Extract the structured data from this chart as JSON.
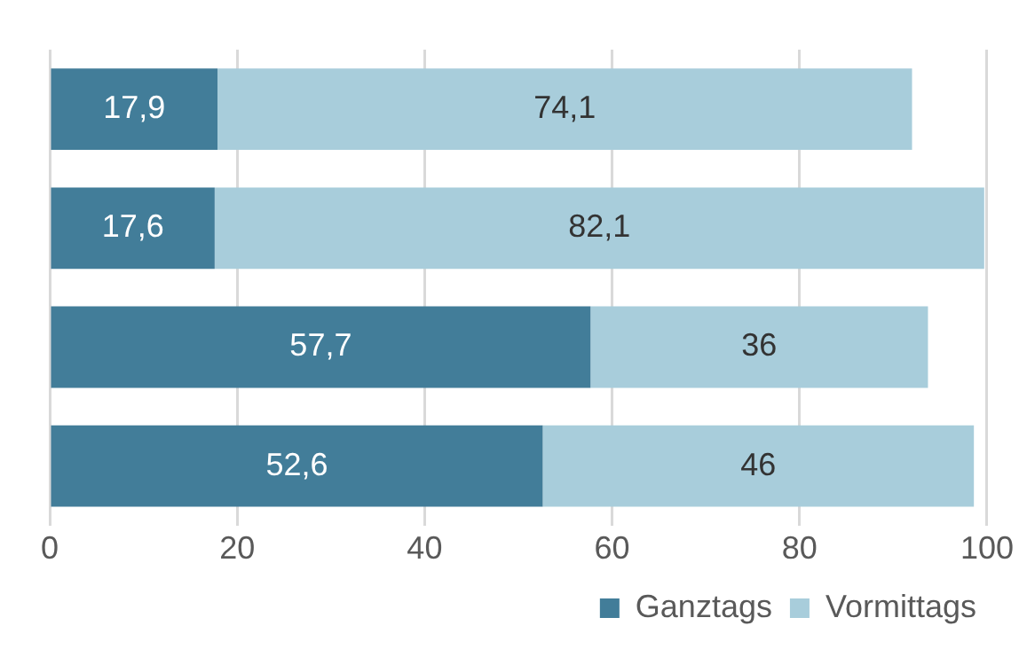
{
  "chart_data": {
    "type": "bar",
    "orientation": "horizontal",
    "stacked": true,
    "categories": [
      null,
      null,
      null,
      null
    ],
    "series": [
      {
        "name": "Ganztags",
        "color": "#427d99",
        "values": [
          17.9,
          17.6,
          57.7,
          52.6
        ],
        "value_labels": [
          "17,9",
          "17,6",
          "57,7",
          "52,6"
        ]
      },
      {
        "name": "Vormittags",
        "color": "#a8cddb",
        "values": [
          74.1,
          82.1,
          36,
          46
        ],
        "value_labels": [
          "74,1",
          "82,1",
          "36",
          "46"
        ]
      }
    ],
    "xlim": [
      0,
      100
    ],
    "xticks": [
      0,
      20,
      40,
      60,
      80,
      100
    ],
    "grid": "x",
    "legend": "bottom right"
  }
}
